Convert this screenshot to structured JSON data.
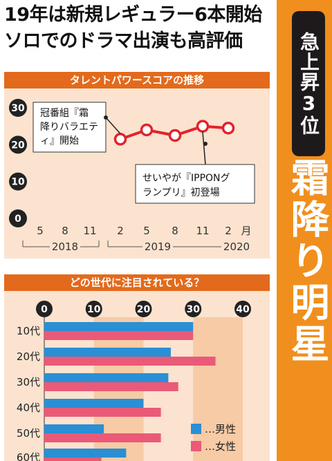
{
  "headline": {
    "line1": "19年は新規レギュラー6本開始",
    "line2": "ソロでのドラマ出演も高評価"
  },
  "side": {
    "badge": "急上昇3位",
    "name": "霜降り明星"
  },
  "colors": {
    "accent": "#e36a1c",
    "side": "#f08f1e",
    "line": "#e0242b",
    "panel_bg": "#fbe3cf",
    "male": "#2a8fd4",
    "female": "#ea5a78"
  },
  "chart_data": [
    {
      "type": "line",
      "title": "タレントパワースコアの推移",
      "y_ticks": [
        "30",
        "20",
        "10",
        "0"
      ],
      "ylim": [
        0,
        30
      ],
      "x_ticks": [
        "5",
        "8",
        "11",
        "2",
        "5",
        "8",
        "11",
        "2"
      ],
      "x_unit": "月",
      "years": [
        "2018",
        "2019",
        "2020"
      ],
      "x": [
        "2019-02",
        "2019-05",
        "2019-08",
        "2019-11",
        "2020-02"
      ],
      "values": [
        21.5,
        24,
        22.5,
        25,
        24.5
      ],
      "annotations": [
        "冠番組『霜降りバラエティ』開始",
        "せいやが『IPPONグランプリ』初登場"
      ],
      "grid": false
    },
    {
      "type": "bar",
      "orientation": "horizontal",
      "title": "どの世代に注目されている？",
      "categories": [
        "10代",
        "20代",
        "30代",
        "40代",
        "50代",
        "60代"
      ],
      "x_ticks": [
        "0",
        "10",
        "20",
        "30",
        "40"
      ],
      "xlim": [
        0,
        40
      ],
      "series": [
        {
          "name": "…男性",
          "values": [
            30,
            25.5,
            25,
            20,
            12,
            16.5
          ]
        },
        {
          "name": "…女性",
          "values": [
            30,
            34.5,
            27,
            23.5,
            23.5,
            11.5
          ]
        }
      ],
      "legend": "bottom-right",
      "grid": true
    }
  ]
}
